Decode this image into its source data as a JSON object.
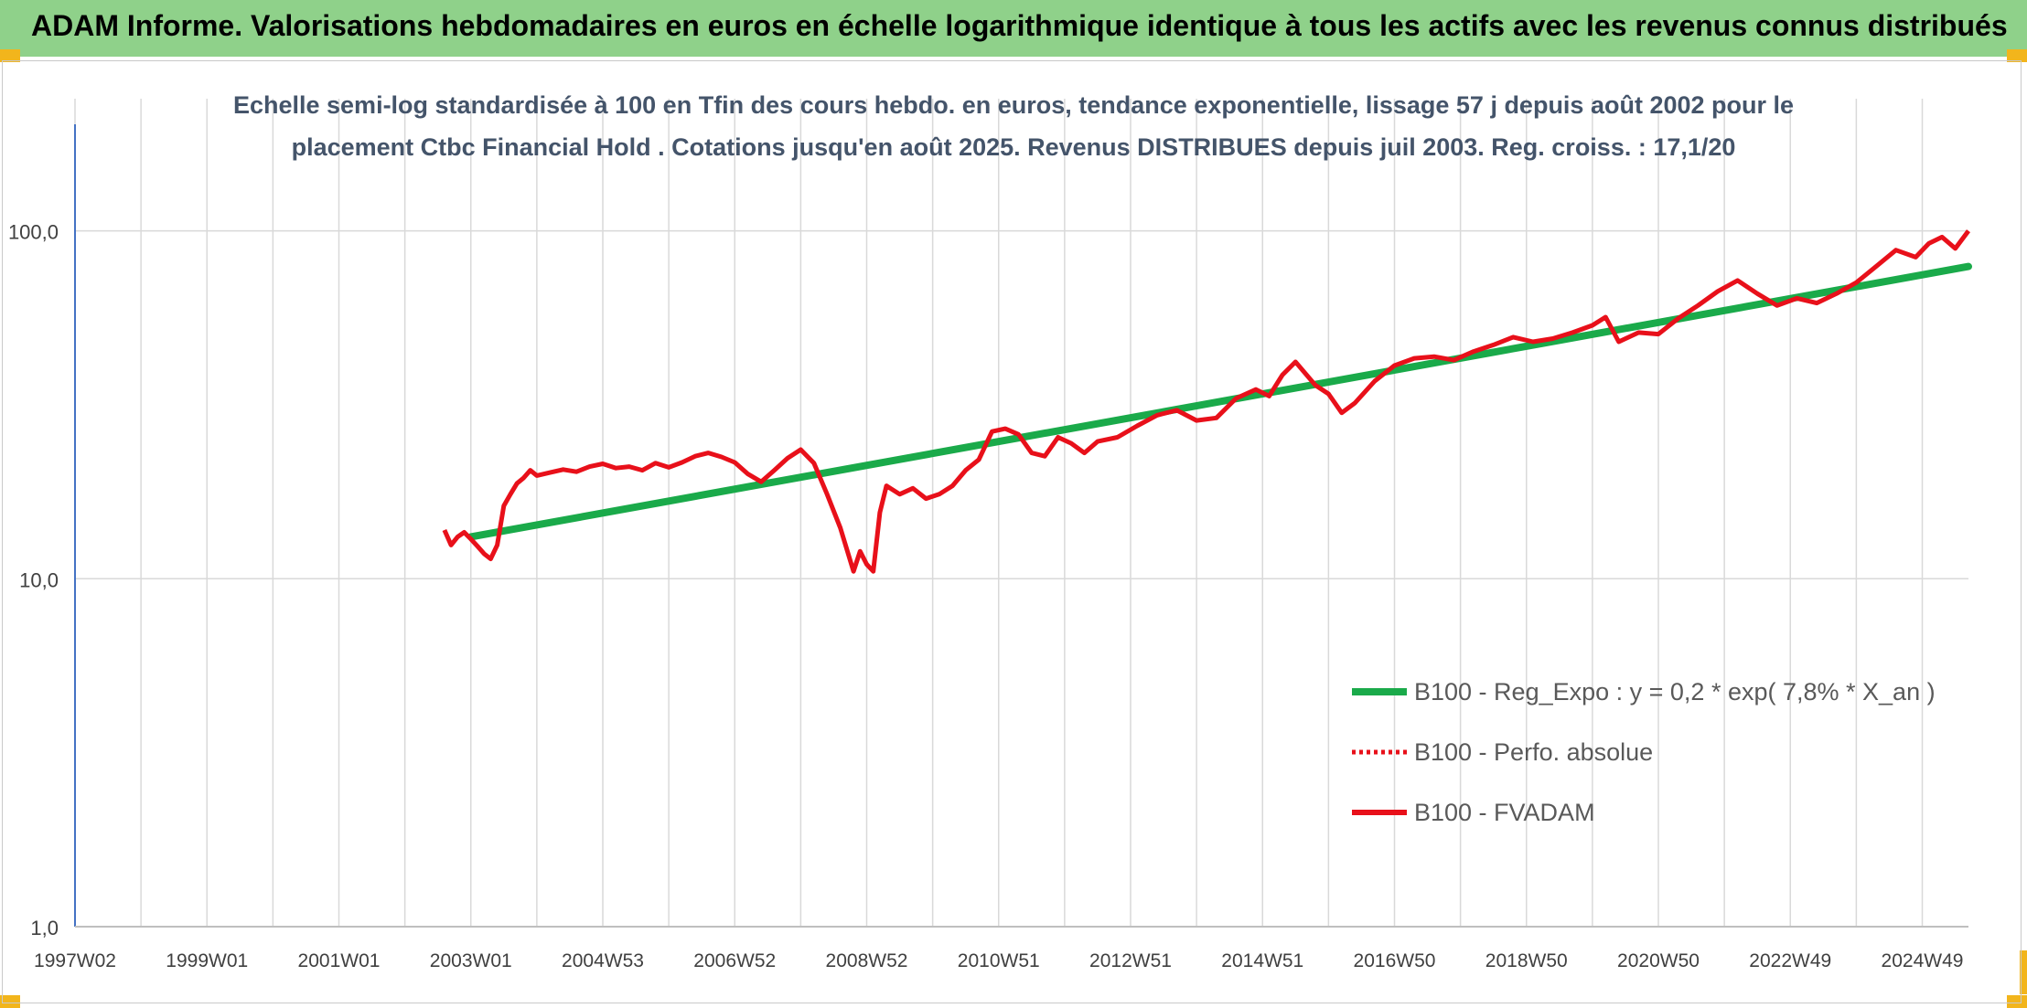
{
  "banner": {
    "title": "ADAM Informe. Valorisations hebdomadaires en euros en échelle logarithmique identique à tous les actifs avec les revenus connus distribués"
  },
  "chart_data": {
    "type": "line",
    "title_lines": [
      "Echelle semi-log standardisée à 100 en Tfin des cours hebdo. en euros, tendance exponentielle, lissage 57 j depuis août 2002 pour le",
      "placement Ctbc Financial Hold . Cotations jusqu'en août 2025. Revenus DISTRIBUES depuis juil 2003. Reg. croiss. : 17,1/20"
    ],
    "y_scale": "log",
    "ylim": [
      1,
      200
    ],
    "y_ticks": [
      1,
      10,
      100
    ],
    "y_tick_labels": [
      "1,0",
      "10,0",
      "100,0"
    ],
    "xlim": [
      1997.0,
      2025.7
    ],
    "x_tick_labels": [
      "1997W02",
      "1999W01",
      "2001W01",
      "2003W01",
      "2004W53",
      "2006W52",
      "2008W52",
      "2010W51",
      "2012W51",
      "2014W51",
      "2016W50",
      "2018W50",
      "2020W50",
      "2022W49",
      "2024W49"
    ],
    "x_tick_years": [
      1997.0,
      1999.0,
      2001.0,
      2003.0,
      2005.0,
      2007.0,
      2009.0,
      2011.0,
      2013.0,
      2015.0,
      2017.0,
      2019.0,
      2021.0,
      2023.0,
      2025.0
    ],
    "grid": "vertical",
    "legend_position": "right",
    "colors": {
      "regression": "#1aaa4a",
      "fvadam": "#e8101a",
      "perfo": "#e8101a",
      "axis": "#4472c4",
      "grid": "#d9d9d9"
    },
    "series": [
      {
        "name": "B100 - Reg_Expo : y = 0,2 * exp( 7,8% *  X_an )",
        "style": "solid-green",
        "x": [
          2003.0,
          2025.7
        ],
        "y": [
          13.2,
          79.0
        ]
      },
      {
        "name": "B100 - Perfo. absolue",
        "style": "dotted-red",
        "x": [],
        "y": []
      },
      {
        "name": "B100 - FVADAM",
        "style": "solid-red",
        "x": [
          2002.6,
          2002.7,
          2002.8,
          2002.9,
          2003.0,
          2003.1,
          2003.2,
          2003.3,
          2003.4,
          2003.5,
          2003.6,
          2003.7,
          2003.8,
          2003.9,
          2004.0,
          2004.2,
          2004.4,
          2004.6,
          2004.8,
          2005.0,
          2005.2,
          2005.4,
          2005.6,
          2005.8,
          2006.0,
          2006.2,
          2006.4,
          2006.6,
          2006.8,
          2007.0,
          2007.2,
          2007.4,
          2007.6,
          2007.8,
          2008.0,
          2008.2,
          2008.4,
          2008.6,
          2008.8,
          2008.9,
          2009.0,
          2009.1,
          2009.2,
          2009.3,
          2009.5,
          2009.7,
          2009.9,
          2010.1,
          2010.3,
          2010.5,
          2010.7,
          2010.9,
          2011.1,
          2011.3,
          2011.5,
          2011.7,
          2011.9,
          2012.1,
          2012.3,
          2012.5,
          2012.8,
          2013.1,
          2013.4,
          2013.7,
          2014.0,
          2014.3,
          2014.6,
          2014.9,
          2015.1,
          2015.3,
          2015.5,
          2015.8,
          2016.0,
          2016.2,
          2016.4,
          2016.7,
          2017.0,
          2017.3,
          2017.6,
          2017.9,
          2018.2,
          2018.5,
          2018.8,
          2019.1,
          2019.4,
          2019.7,
          2020.0,
          2020.2,
          2020.4,
          2020.7,
          2021.0,
          2021.3,
          2021.6,
          2021.9,
          2022.2,
          2022.5,
          2022.8,
          2023.1,
          2023.4,
          2023.7,
          2024.0,
          2024.3,
          2024.6,
          2024.9,
          2025.1,
          2025.3,
          2025.5,
          2025.7
        ],
        "y": [
          13.8,
          12.5,
          13.2,
          13.6,
          13.0,
          12.4,
          11.8,
          11.4,
          12.5,
          16.2,
          17.5,
          18.8,
          19.5,
          20.5,
          19.8,
          20.2,
          20.6,
          20.3,
          21.0,
          21.4,
          20.8,
          21.0,
          20.5,
          21.5,
          20.9,
          21.6,
          22.5,
          23.0,
          22.4,
          21.6,
          20.0,
          19.0,
          20.5,
          22.2,
          23.5,
          21.5,
          17.5,
          14.0,
          10.5,
          12.0,
          11.0,
          10.5,
          15.5,
          18.5,
          17.5,
          18.2,
          17.0,
          17.5,
          18.5,
          20.5,
          22.0,
          26.5,
          27.0,
          26.0,
          23.0,
          22.5,
          25.5,
          24.5,
          23.0,
          24.8,
          25.5,
          27.5,
          29.5,
          30.5,
          28.5,
          29.0,
          33.0,
          35.0,
          33.5,
          38.5,
          42.0,
          36.0,
          34.0,
          30.0,
          32.0,
          37.0,
          41.0,
          43.0,
          43.5,
          42.5,
          45.0,
          47.0,
          49.5,
          48.0,
          49.0,
          51.0,
          53.5,
          56.5,
          48.0,
          51.0,
          50.5,
          56.0,
          61.0,
          67.0,
          72.0,
          66.0,
          61.0,
          64.0,
          62.0,
          66.0,
          71.0,
          79.0,
          88.0,
          84.0,
          92.0,
          96.0,
          89.0,
          100.0
        ]
      }
    ]
  }
}
